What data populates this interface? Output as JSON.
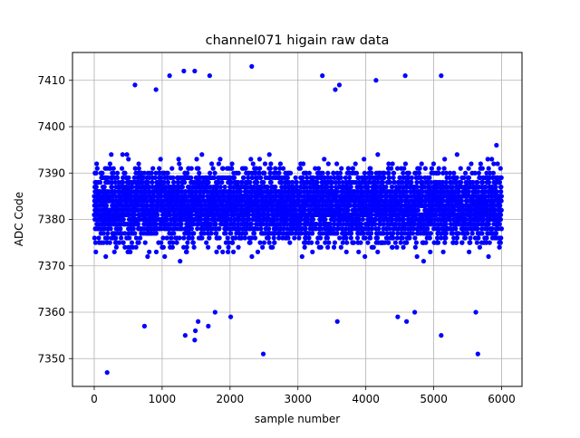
{
  "chart_data": {
    "type": "scatter",
    "title": "channel071 higain raw data",
    "xlabel": "sample number",
    "ylabel": "ADC Code",
    "xlim": [
      -320,
      6300
    ],
    "ylim": [
      7344,
      7416
    ],
    "xticks": [
      0,
      1000,
      2000,
      3000,
      4000,
      5000,
      6000
    ],
    "yticks": [
      7350,
      7360,
      7370,
      7380,
      7390,
      7400,
      7410
    ],
    "grid": true,
    "marker_color": "#0000ff",
    "n_samples": 6000,
    "distribution": {
      "center": 7383,
      "core_low": 7368,
      "core_high": 7398
    },
    "outliers": [
      [
        190,
        7347
      ],
      [
        2490,
        7351
      ],
      [
        5650,
        7351
      ],
      [
        1480,
        7354
      ],
      [
        1490,
        7356
      ],
      [
        1340,
        7355
      ],
      [
        1530,
        7358
      ],
      [
        740,
        7357
      ],
      [
        1680,
        7357
      ],
      [
        1780,
        7360
      ],
      [
        2010,
        7359
      ],
      [
        3580,
        7358
      ],
      [
        4600,
        7358
      ],
      [
        4470,
        7359
      ],
      [
        4720,
        7360
      ],
      [
        5110,
        7355
      ],
      [
        5620,
        7360
      ],
      [
        1320,
        7412
      ],
      [
        1480,
        7412
      ],
      [
        2320,
        7413
      ],
      [
        1110,
        7411
      ],
      [
        1700,
        7411
      ],
      [
        3360,
        7411
      ],
      [
        4580,
        7411
      ],
      [
        5110,
        7411
      ],
      [
        3610,
        7409
      ],
      [
        3550,
        7408
      ],
      [
        4150,
        7410
      ],
      [
        910,
        7408
      ],
      [
        600,
        7409
      ]
    ]
  }
}
